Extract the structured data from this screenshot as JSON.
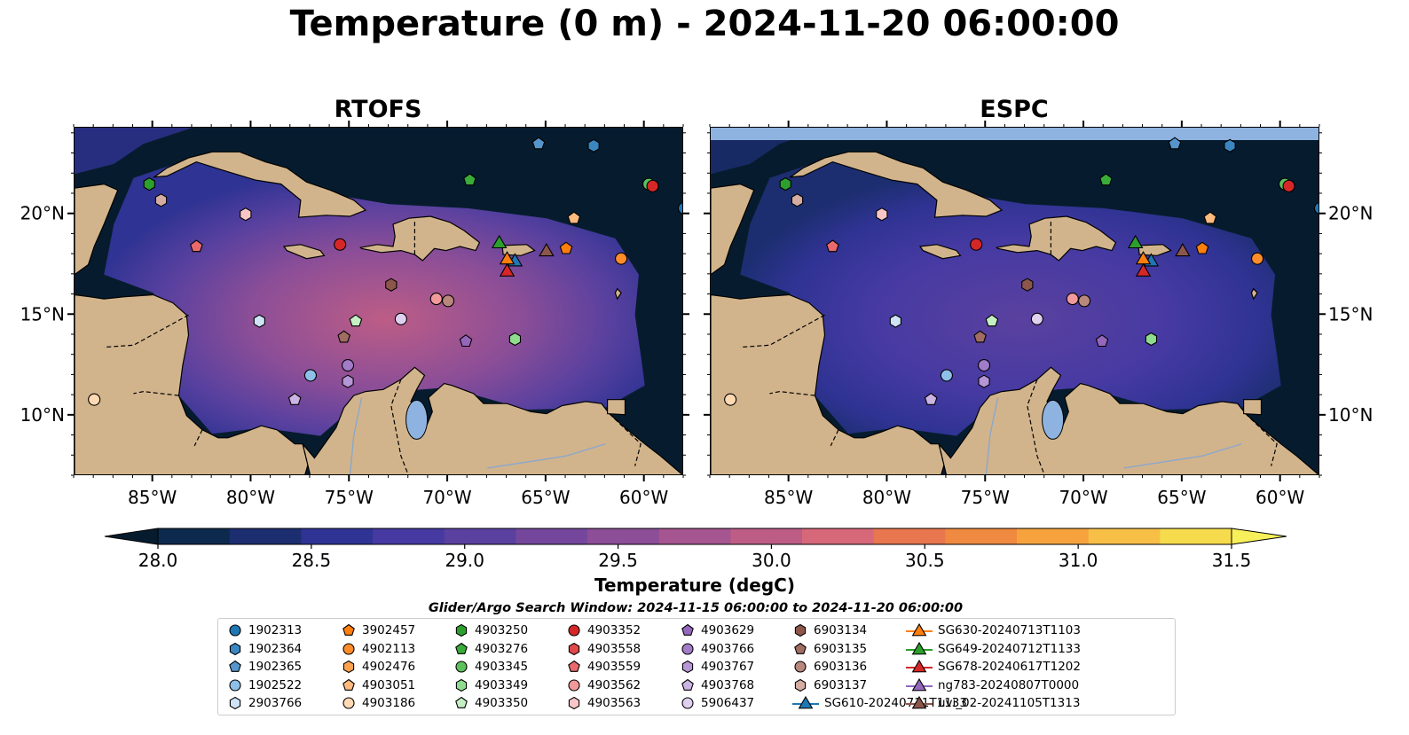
{
  "title": "Temperature (0 m) - 2024-11-20 06:00:00",
  "panels": [
    {
      "title": "RTOFS",
      "header_band": false
    },
    {
      "title": "ESPC",
      "header_band": true
    }
  ],
  "axes": {
    "lon_range": [
      -89,
      -58
    ],
    "lat_range": [
      7,
      24.3
    ],
    "lon_ticks": [
      "85°W",
      "80°W",
      "75°W",
      "70°W",
      "65°W",
      "60°W"
    ],
    "lat_ticks": [
      "20°N",
      "15°N",
      "10°N"
    ]
  },
  "colors": {
    "land": "#d2b48c",
    "deep_ocean": "#061c2e",
    "lake": "#8fb3e0",
    "espc_band": "#8fb3e0"
  },
  "colorbar": {
    "label": "Temperature (degC)",
    "min": 28.0,
    "max": 31.5,
    "ticks": [
      "28.0",
      "28.5",
      "29.0",
      "29.5",
      "30.0",
      "30.5",
      "31.0",
      "31.5"
    ],
    "colors": [
      "#0d2a4e",
      "#1c2e70",
      "#2f3393",
      "#463aa2",
      "#5a419f",
      "#74479c",
      "#8c4e97",
      "#a55590",
      "#bd5d86",
      "#d6687a",
      "#e8764f",
      "#f08a40",
      "#f6a33e",
      "#f8bf46",
      "#f6dc4d"
    ],
    "under_color": "#061c2e",
    "over_color": "#f8f05a"
  },
  "legend": {
    "title": "Glider/Argo Search Window: 2024-11-15 06:00:00 to 2024-11-20 06:00:00",
    "entries": [
      {
        "label": "1902313",
        "marker": "circle",
        "color": "#1f77b4"
      },
      {
        "label": "1902364",
        "marker": "hexagon",
        "color": "#3a86c0"
      },
      {
        "label": "1902365",
        "marker": "pentagon",
        "color": "#5595cc"
      },
      {
        "label": "1902522",
        "marker": "circle",
        "color": "#8ec0ea"
      },
      {
        "label": "2903766",
        "marker": "hexagon",
        "color": "#cfe3f6"
      },
      {
        "label": "3902457",
        "marker": "pentagon",
        "color": "#ff7f0e"
      },
      {
        "label": "4902113",
        "marker": "circle",
        "color": "#ff8c2a"
      },
      {
        "label": "4902476",
        "marker": "hexagon",
        "color": "#ffa14f"
      },
      {
        "label": "4903051",
        "marker": "pentagon",
        "color": "#ffbb7f"
      },
      {
        "label": "4903186",
        "marker": "circle",
        "color": "#ffd9b3"
      },
      {
        "label": "4903250",
        "marker": "hexagon",
        "color": "#2ca02c"
      },
      {
        "label": "4903276",
        "marker": "pentagon",
        "color": "#3aac3a"
      },
      {
        "label": "4903345",
        "marker": "circle",
        "color": "#5cc15c"
      },
      {
        "label": "4903349",
        "marker": "hexagon",
        "color": "#8fdc8f"
      },
      {
        "label": "4903350",
        "marker": "pentagon",
        "color": "#c4f0c4"
      },
      {
        "label": "4903352",
        "marker": "circle",
        "color": "#d62728"
      },
      {
        "label": "4903558",
        "marker": "hexagon",
        "color": "#e0484a"
      },
      {
        "label": "4903559",
        "marker": "pentagon",
        "color": "#e96a6c"
      },
      {
        "label": "4903562",
        "marker": "circle",
        "color": "#f29a9b"
      },
      {
        "label": "4903563",
        "marker": "hexagon",
        "color": "#f8c6c7"
      },
      {
        "label": "4903629",
        "marker": "pentagon",
        "color": "#9467bd"
      },
      {
        "label": "4903766",
        "marker": "circle",
        "color": "#a27cc8"
      },
      {
        "label": "4903767",
        "marker": "hexagon",
        "color": "#b596d6"
      },
      {
        "label": "4903768",
        "marker": "pentagon",
        "color": "#cbb4e4"
      },
      {
        "label": "5906437",
        "marker": "circle",
        "color": "#e0d0f0"
      },
      {
        "label": "6903134",
        "marker": "hexagon",
        "color": "#8c564b"
      },
      {
        "label": "6903135",
        "marker": "pentagon",
        "color": "#a06d62"
      },
      {
        "label": "6903136",
        "marker": "circle",
        "color": "#b8887d"
      },
      {
        "label": "6903137",
        "marker": "hexagon",
        "color": "#d4aca2"
      },
      {
        "label": "SG610-20240711T1133",
        "marker": "triangle-line",
        "color": "#1f77b4"
      },
      {
        "label": "SG630-20240713T1103",
        "marker": "triangle-line",
        "color": "#ff7f0e"
      },
      {
        "label": "SG649-20240712T1133",
        "marker": "triangle-line",
        "color": "#2ca02c"
      },
      {
        "label": "SG678-20240617T1202",
        "marker": "triangle-line",
        "color": "#d62728"
      },
      {
        "label": "ng783-20240807T0000",
        "marker": "triangle-line",
        "color": "#9467bd"
      },
      {
        "label": "uvi_02-20241105T1313",
        "marker": "triangle-line",
        "color": "#8c564b"
      }
    ]
  },
  "markers": [
    {
      "id": "1902313",
      "lon": -58.0,
      "lat": 20.3
    },
    {
      "id": "1902364",
      "lon": -62.6,
      "lat": 23.4
    },
    {
      "id": "1902365",
      "lon": -65.4,
      "lat": 23.5
    },
    {
      "id": "1902522",
      "lon": -77.0,
      "lat": 12.0
    },
    {
      "id": "2903766",
      "lon": -79.6,
      "lat": 14.7
    },
    {
      "id": "3902457",
      "lon": -64.0,
      "lat": 18.3
    },
    {
      "id": "4902113",
      "lon": -61.2,
      "lat": 17.8
    },
    {
      "id": "4903051",
      "lon": -63.6,
      "lat": 19.8
    },
    {
      "id": "4903186",
      "lon": -88.0,
      "lat": 10.8
    },
    {
      "id": "4903250",
      "lon": -85.2,
      "lat": 21.5
    },
    {
      "id": "4903276",
      "lon": -68.9,
      "lat": 21.7
    },
    {
      "id": "4903345",
      "lon": -59.8,
      "lat": 21.5
    },
    {
      "id": "4903349",
      "lon": -66.6,
      "lat": 13.8
    },
    {
      "id": "4903350",
      "lon": -74.7,
      "lat": 14.7
    },
    {
      "id": "4903352",
      "lon": -59.6,
      "lat": 21.4
    },
    {
      "id": "4903559",
      "lon": -82.8,
      "lat": 18.4
    },
    {
      "id": "4903562",
      "lon": -70.6,
      "lat": 15.8
    },
    {
      "id": "4903563",
      "lon": -80.3,
      "lat": 20.0
    },
    {
      "id": "4903629",
      "lon": -69.1,
      "lat": 13.7
    },
    {
      "id": "4903766",
      "lon": -75.1,
      "lat": 12.5
    },
    {
      "id": "4903767",
      "lon": -75.1,
      "lat": 11.7
    },
    {
      "id": "4903768",
      "lon": -77.8,
      "lat": 10.8
    },
    {
      "id": "5906437",
      "lon": -72.4,
      "lat": 14.8
    },
    {
      "id": "6903134",
      "lon": -72.9,
      "lat": 16.5
    },
    {
      "id": "6903135",
      "lon": -75.3,
      "lat": 13.9
    },
    {
      "id": "6903136",
      "lon": -70.0,
      "lat": 15.7
    },
    {
      "id": "6903137",
      "lon": -84.6,
      "lat": 20.7
    },
    {
      "id": "4903352",
      "lon": -75.5,
      "lat": 18.5
    },
    {
      "id": "SG610-20240711T1133",
      "lon": -66.6,
      "lat": 17.7
    },
    {
      "id": "SG630-20240713T1103",
      "lon": -67.0,
      "lat": 17.8
    },
    {
      "id": "SG649-20240712T1133",
      "lon": -67.4,
      "lat": 18.6
    },
    {
      "id": "SG678-20240617T1202",
      "lon": -67.0,
      "lat": 17.2
    },
    {
      "id": "uvi_02-20241105T1313",
      "lon": -65.0,
      "lat": 18.2
    }
  ]
}
